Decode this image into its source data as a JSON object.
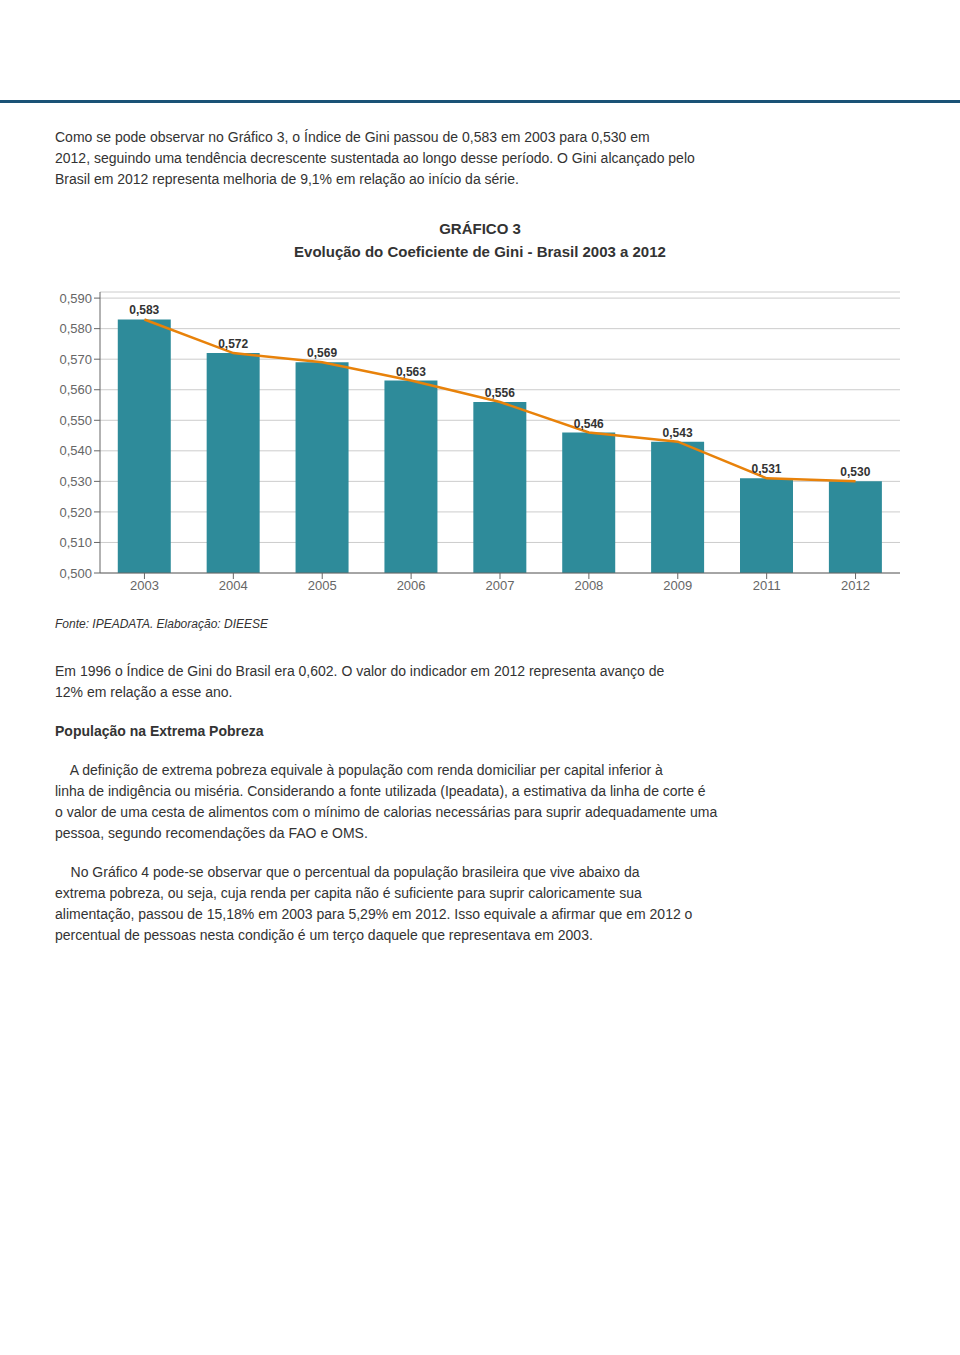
{
  "chart_data": {
    "type": "bar",
    "title": "GRÁFICO 3",
    "subtitle": "Evolução do Coeficiente de Gini - Brasil 2003 a 2012",
    "categories": [
      "2003",
      "2004",
      "2005",
      "2006",
      "2007",
      "2008",
      "2009",
      "2011",
      "2012"
    ],
    "series": [
      {
        "type": "bar",
        "color": "#2E8B9A",
        "values": [
          0.583,
          0.572,
          0.569,
          0.563,
          0.556,
          0.546,
          0.543,
          0.531,
          0.53
        ],
        "value_labels": [
          "0,583",
          "0,572",
          "0,569",
          "0,563",
          "0,556",
          "0,546",
          "0,543",
          "0,531",
          "0,530"
        ]
      },
      {
        "type": "line",
        "color": "#E8820A",
        "values": [
          0.583,
          0.572,
          0.569,
          0.563,
          0.556,
          0.546,
          0.543,
          0.531,
          0.53
        ]
      }
    ],
    "data_labels": true,
    "ylim": [
      0.5,
      0.592
    ],
    "yticks": [
      {
        "value": 0.5,
        "label": "0,500"
      },
      {
        "value": 0.51,
        "label": "0,510"
      },
      {
        "value": 0.52,
        "label": "0,520"
      },
      {
        "value": 0.53,
        "label": "0,530"
      },
      {
        "value": 0.54,
        "label": "0,540"
      },
      {
        "value": 0.55,
        "label": "0,550"
      },
      {
        "value": 0.56,
        "label": "0,560"
      },
      {
        "value": 0.57,
        "label": "0,570"
      },
      {
        "value": 0.58,
        "label": "0,580"
      },
      {
        "value": 0.59,
        "label": "0,590"
      }
    ],
    "grid": true,
    "annotations": [
      [
        "Como se pode observar no Gráfico 3, o Índice de Gini passou de 0,583 em 2003 para 0,530 em",
        "2012, seguindo uma tendência decrescente sustentada ao longo desse período. O Gini alcançado pelo",
        "Brasil em 2012 representa melhoria de 9,1% em relação ao início da série."
      ],
      [
        "Fonte: IPEADATA. Elaboração: DIEESE"
      ],
      [
        "Em 1996 o Índice de Gini do Brasil era 0,602. O valor do indicador em 2012 representa avanço de",
        "12% em relação a esse ano."
      ],
      [
        "População na Extrema Pobreza"
      ],
      [
        "    A definição de extrema pobreza equivale à população com renda domiciliar per capital inferior à",
        "linha de indigência ou miséria. Considerando a fonte utilizada (Ipeadata), a estimativa da linha de corte é",
        "o valor de uma cesta de alimentos com o mínimo de calorias necessárias para suprir adequadamente uma",
        "pessoa, segundo recomendações da FAO e OMS."
      ],
      [
        "    No Gráfico 4 pode-se observar que o percentual da população brasileira que vive abaixo da",
        "extrema pobreza, ou seja, cuja renda per capita não é suficiente para suprir caloricamente sua",
        "alimentação, passou de 15,18% em 2003 para 5,29% em 2012. Isso equivale a afirmar que em 2012 o",
        "percentual de pessoas nesta condição é um terço daquele que representava em 2003."
      ]
    ]
  }
}
